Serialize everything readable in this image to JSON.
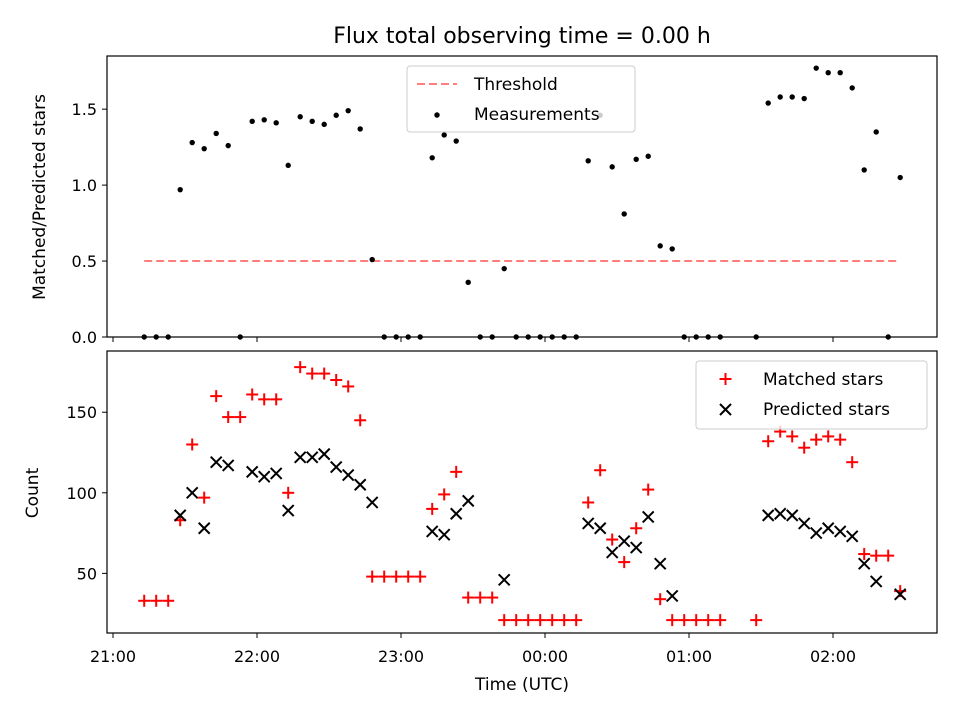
{
  "chart_data": [
    {
      "type": "scatter",
      "title": "Flux total observing time = 0.00 h",
      "ylabel": "Matched/Predicted stars",
      "xlabel": "",
      "ylim": [
        0,
        1.85
      ],
      "yticks": [
        {
          "v": 0.0,
          "label": "0.0"
        },
        {
          "v": 0.5,
          "label": "0.5"
        },
        {
          "v": 1.0,
          "label": "1.0"
        },
        {
          "v": 1.5,
          "label": "1.5"
        }
      ],
      "legend_placement": "top-center",
      "grid": false,
      "threshold": {
        "name": "Threshold",
        "color": "#ff7f7f",
        "value": 0.5,
        "x_start": "21:13",
        "x_end": "02:28"
      },
      "series": [
        {
          "name": "Measurements",
          "color": "#000000",
          "points": [
            [
              "21:13",
              0.0
            ],
            [
              "21:18",
              0.0
            ],
            [
              "21:23",
              0.0
            ],
            [
              "21:28",
              0.97
            ],
            [
              "21:33",
              1.28
            ],
            [
              "21:38",
              1.24
            ],
            [
              "21:43",
              1.34
            ],
            [
              "21:48",
              1.26
            ],
            [
              "21:53",
              0.0
            ],
            [
              "21:58",
              1.42
            ],
            [
              "22:03",
              1.43
            ],
            [
              "22:08",
              1.41
            ],
            [
              "22:13",
              1.13
            ],
            [
              "22:18",
              1.45
            ],
            [
              "22:23",
              1.42
            ],
            [
              "22:28",
              1.4
            ],
            [
              "22:33",
              1.46
            ],
            [
              "22:38",
              1.49
            ],
            [
              "22:43",
              1.37
            ],
            [
              "22:48",
              0.51
            ],
            [
              "22:53",
              0.0
            ],
            [
              "22:58",
              0.0
            ],
            [
              "23:03",
              0.0
            ],
            [
              "23:08",
              0.0
            ],
            [
              "23:13",
              1.18
            ],
            [
              "23:15",
              1.46
            ],
            [
              "23:18",
              1.33
            ],
            [
              "23:23",
              1.29
            ],
            [
              "23:28",
              0.36
            ],
            [
              "23:33",
              0.0
            ],
            [
              "23:38",
              0.0
            ],
            [
              "23:43",
              0.45
            ],
            [
              "23:48",
              0.0
            ],
            [
              "23:53",
              0.0
            ],
            [
              "23:58",
              0.0
            ],
            [
              "00:03",
              0.0
            ],
            [
              "00:08",
              0.0
            ],
            [
              "00:13",
              0.0
            ],
            [
              "00:18",
              1.16
            ],
            [
              "00:23",
              1.46
            ],
            [
              "00:28",
              1.12
            ],
            [
              "00:33",
              0.81
            ],
            [
              "00:38",
              1.17
            ],
            [
              "00:43",
              1.19
            ],
            [
              "00:48",
              0.6
            ],
            [
              "00:53",
              0.58
            ],
            [
              "00:58",
              0.0
            ],
            [
              "01:03",
              0.0
            ],
            [
              "01:08",
              0.0
            ],
            [
              "01:13",
              0.0
            ],
            [
              "01:28",
              0.0
            ],
            [
              "01:33",
              1.54
            ],
            [
              "01:38",
              1.58
            ],
            [
              "01:43",
              1.58
            ],
            [
              "01:48",
              1.57
            ],
            [
              "01:53",
              1.77
            ],
            [
              "01:58",
              1.74
            ],
            [
              "02:03",
              1.74
            ],
            [
              "02:08",
              1.64
            ],
            [
              "02:13",
              1.1
            ],
            [
              "02:18",
              1.35
            ],
            [
              "02:23",
              0.0
            ],
            [
              "02:28",
              1.05
            ]
          ]
        }
      ]
    },
    {
      "type": "scatter",
      "title": "",
      "ylabel": "Count",
      "xlabel": "Time (UTC)",
      "ylim": [
        13,
        188
      ],
      "yticks": [
        {
          "v": 50,
          "label": "50"
        },
        {
          "v": 100,
          "label": "100"
        },
        {
          "v": 150,
          "label": "150"
        }
      ],
      "xticks": [
        "21:00",
        "22:00",
        "23:00",
        "00:00",
        "01:00",
        "02:00"
      ],
      "legend_placement": "top-right",
      "grid": false,
      "series": [
        {
          "name": "Matched stars",
          "color": "#ff0000",
          "marker": "+",
          "points": [
            [
              "21:13",
              33
            ],
            [
              "21:18",
              33
            ],
            [
              "21:23",
              33
            ],
            [
              "21:28",
              83
            ],
            [
              "21:33",
              130
            ],
            [
              "21:38",
              97
            ],
            [
              "21:43",
              160
            ],
            [
              "21:48",
              147
            ],
            [
              "21:53",
              147
            ],
            [
              "21:58",
              161
            ],
            [
              "22:03",
              158
            ],
            [
              "22:08",
              158
            ],
            [
              "22:13",
              100
            ],
            [
              "22:18",
              178
            ],
            [
              "22:23",
              174
            ],
            [
              "22:28",
              174
            ],
            [
              "22:33",
              170
            ],
            [
              "22:38",
              166
            ],
            [
              "22:43",
              145
            ],
            [
              "22:48",
              48
            ],
            [
              "22:53",
              48
            ],
            [
              "22:58",
              48
            ],
            [
              "23:03",
              48
            ],
            [
              "23:08",
              48
            ],
            [
              "23:13",
              90
            ],
            [
              "23:18",
              99
            ],
            [
              "23:23",
              113
            ],
            [
              "23:28",
              35
            ],
            [
              "23:33",
              35
            ],
            [
              "23:38",
              35
            ],
            [
              "23:43",
              21
            ],
            [
              "23:48",
              21
            ],
            [
              "23:53",
              21
            ],
            [
              "23:58",
              21
            ],
            [
              "00:03",
              21
            ],
            [
              "00:08",
              21
            ],
            [
              "00:13",
              21
            ],
            [
              "00:18",
              94
            ],
            [
              "00:23",
              114
            ],
            [
              "00:28",
              71
            ],
            [
              "00:33",
              57
            ],
            [
              "00:38",
              78
            ],
            [
              "00:43",
              102
            ],
            [
              "00:48",
              34
            ],
            [
              "00:53",
              21
            ],
            [
              "00:58",
              21
            ],
            [
              "01:03",
              21
            ],
            [
              "01:08",
              21
            ],
            [
              "01:13",
              21
            ],
            [
              "01:28",
              21
            ],
            [
              "01:33",
              132
            ],
            [
              "01:38",
              138
            ],
            [
              "01:43",
              135
            ],
            [
              "01:48",
              128
            ],
            [
              "01:53",
              133
            ],
            [
              "01:58",
              135
            ],
            [
              "02:03",
              133
            ],
            [
              "02:08",
              119
            ],
            [
              "02:13",
              62
            ],
            [
              "02:18",
              61
            ],
            [
              "02:23",
              61
            ],
            [
              "02:28",
              39
            ]
          ]
        },
        {
          "name": "Predicted stars",
          "color": "#000000",
          "marker": "x",
          "points": [
            [
              "21:28",
              86
            ],
            [
              "21:33",
              100
            ],
            [
              "21:38",
              78
            ],
            [
              "21:43",
              119
            ],
            [
              "21:48",
              117
            ],
            [
              "21:58",
              113
            ],
            [
              "22:03",
              110
            ],
            [
              "22:08",
              112
            ],
            [
              "22:13",
              89
            ],
            [
              "22:18",
              122
            ],
            [
              "22:23",
              122
            ],
            [
              "22:28",
              124
            ],
            [
              "22:33",
              116
            ],
            [
              "22:38",
              111
            ],
            [
              "22:43",
              105
            ],
            [
              "22:48",
              94
            ],
            [
              "23:13",
              76
            ],
            [
              "23:18",
              74
            ],
            [
              "23:23",
              87
            ],
            [
              "23:28",
              95
            ],
            [
              "23:43",
              46
            ],
            [
              "00:18",
              81
            ],
            [
              "00:23",
              78
            ],
            [
              "00:28",
              63
            ],
            [
              "00:33",
              70
            ],
            [
              "00:38",
              66
            ],
            [
              "00:43",
              85
            ],
            [
              "00:48",
              56
            ],
            [
              "00:53",
              36
            ],
            [
              "01:33",
              86
            ],
            [
              "01:38",
              87
            ],
            [
              "01:43",
              86
            ],
            [
              "01:48",
              81
            ],
            [
              "01:53",
              75
            ],
            [
              "01:58",
              78
            ],
            [
              "02:03",
              76
            ],
            [
              "02:08",
              73
            ],
            [
              "02:13",
              56
            ],
            [
              "02:18",
              45
            ],
            [
              "02:28",
              37
            ]
          ]
        }
      ]
    }
  ]
}
